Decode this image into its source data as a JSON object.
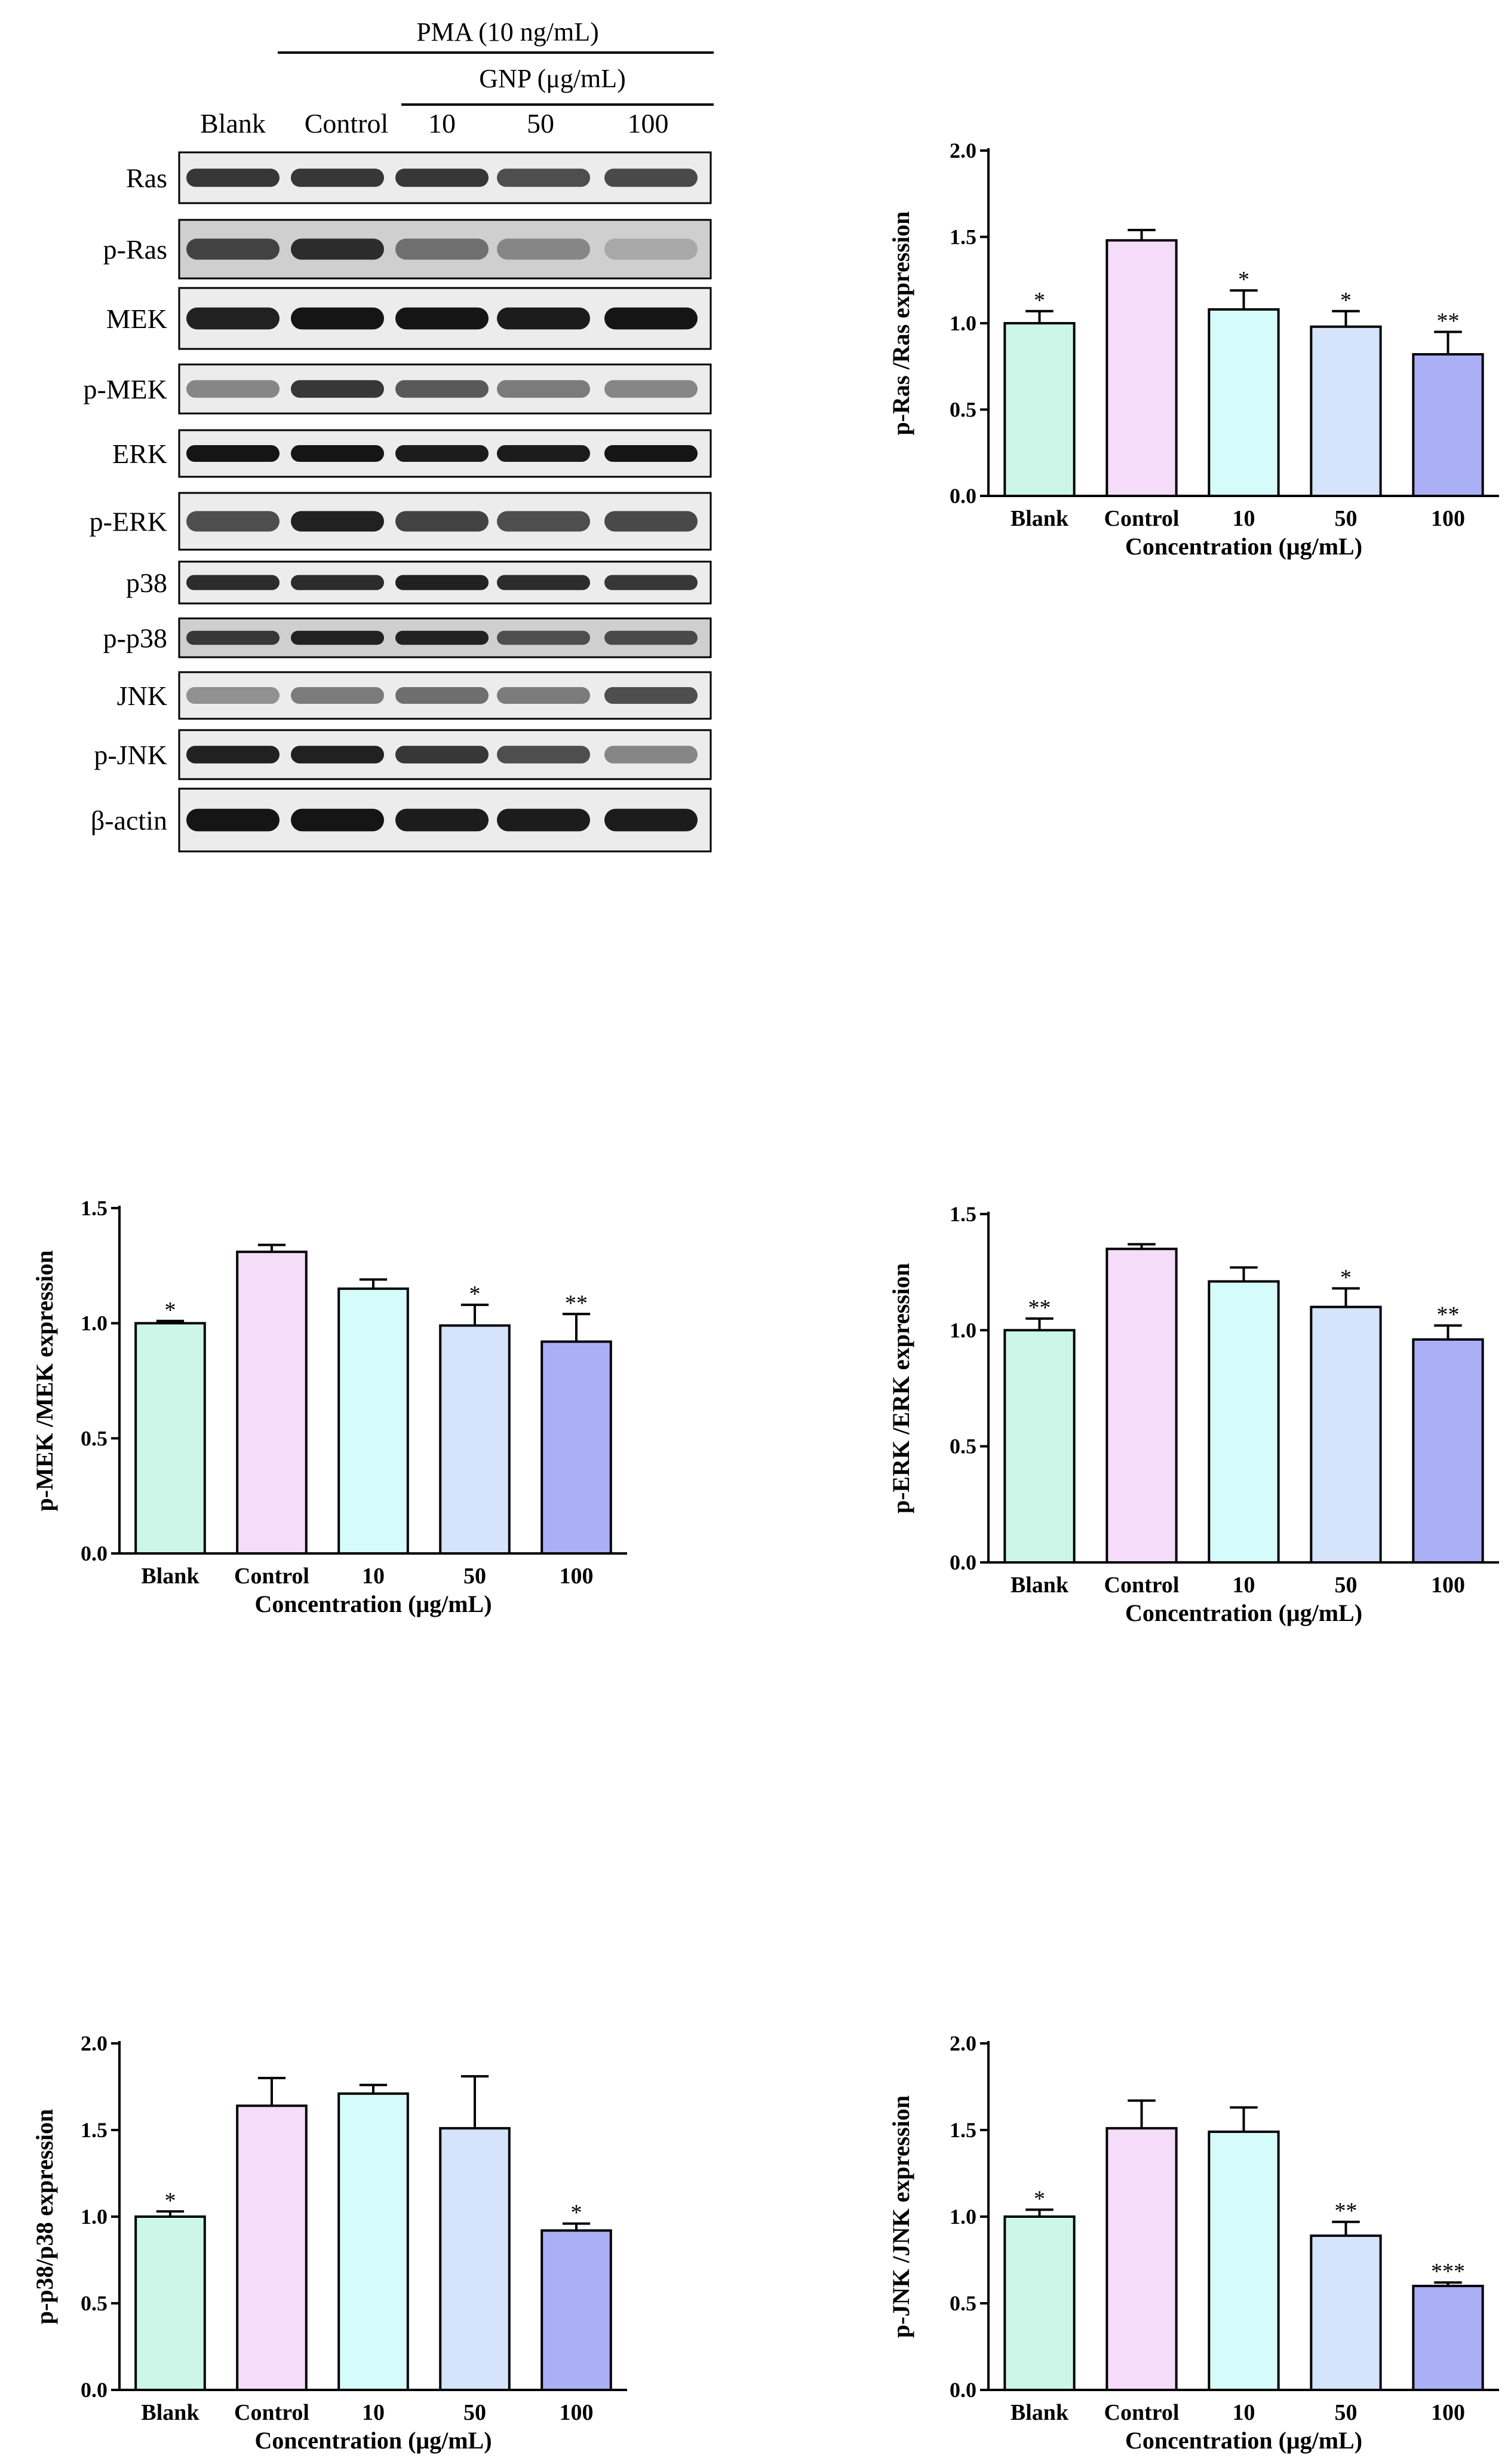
{
  "blot": {
    "treatment_label": "PMA (10 ng/mL)",
    "gnp_label": "GNP (μg/mL)",
    "lanes": [
      "Blank",
      "Control",
      "10",
      "50",
      "100"
    ],
    "proteins": [
      "Ras",
      "p-Ras",
      "MEK",
      "p-MEK",
      "ERK",
      "p-ERK",
      "p38",
      "p-p38",
      "JNK",
      "p-JNK",
      "β-actin"
    ],
    "band_intensity": [
      [
        0.8,
        0.8,
        0.8,
        0.7,
        0.72
      ],
      [
        0.75,
        0.85,
        0.55,
        0.45,
        0.3
      ],
      [
        0.9,
        0.95,
        0.95,
        0.92,
        0.95
      ],
      [
        0.45,
        0.8,
        0.65,
        0.5,
        0.45
      ],
      [
        0.95,
        0.95,
        0.92,
        0.92,
        0.95
      ],
      [
        0.7,
        0.9,
        0.75,
        0.7,
        0.72
      ],
      [
        0.85,
        0.85,
        0.9,
        0.85,
        0.8
      ],
      [
        0.8,
        0.9,
        0.9,
        0.7,
        0.72
      ],
      [
        0.4,
        0.5,
        0.55,
        0.5,
        0.7
      ],
      [
        0.9,
        0.9,
        0.8,
        0.7,
        0.45
      ],
      [
        0.95,
        0.95,
        0.92,
        0.92,
        0.92
      ]
    ]
  },
  "chart_data": [
    {
      "type": "bar",
      "categories": [
        "Blank",
        "Control",
        "10",
        "50",
        "100"
      ],
      "values": [
        1.0,
        1.48,
        1.08,
        0.98,
        0.82
      ],
      "errors": [
        0.07,
        0.06,
        0.11,
        0.09,
        0.13
      ],
      "significance": [
        "*",
        "",
        "*",
        "*",
        "**"
      ],
      "title": "",
      "xlabel": "Concentration (μg/mL)",
      "ylabel": "p-Ras /Ras expression",
      "ylim": [
        0,
        2.0
      ],
      "yticks": [
        "0.0",
        "0.5",
        "1.0",
        "1.5",
        "2.0"
      ],
      "colors": [
        "#ccf7e8",
        "#f5dcf8",
        "#d6fbfb",
        "#d6e4fb",
        "#aaaff6"
      ]
    },
    {
      "type": "bar",
      "categories": [
        "Blank",
        "Control",
        "10",
        "50",
        "100"
      ],
      "values": [
        1.0,
        1.31,
        1.15,
        0.99,
        0.92
      ],
      "errors": [
        0.01,
        0.03,
        0.04,
        0.09,
        0.12
      ],
      "significance": [
        "*",
        "",
        "",
        "*",
        "**"
      ],
      "title": "",
      "xlabel": "Concentration (μg/mL)",
      "ylabel": "p-MEK /MEK expression",
      "ylim": [
        0,
        1.5
      ],
      "yticks": [
        "0.0",
        "0.5",
        "1.0",
        "1.5"
      ],
      "colors": [
        "#ccf7e8",
        "#f5dcf8",
        "#d6fbfb",
        "#d6e4fb",
        "#aaaff6"
      ]
    },
    {
      "type": "bar",
      "categories": [
        "Blank",
        "Control",
        "10",
        "50",
        "100"
      ],
      "values": [
        1.0,
        1.35,
        1.21,
        1.1,
        0.96
      ],
      "errors": [
        0.05,
        0.02,
        0.06,
        0.08,
        0.06
      ],
      "significance": [
        "**",
        "",
        "",
        "*",
        "**"
      ],
      "title": "",
      "xlabel": "Concentration (μg/mL)",
      "ylabel": "p-ERK /ERK expression",
      "ylim": [
        0,
        1.5
      ],
      "yticks": [
        "0.0",
        "0.5",
        "1.0",
        "1.5"
      ],
      "colors": [
        "#ccf7e8",
        "#f5dcf8",
        "#d6fbfb",
        "#d6e4fb",
        "#aaaff6"
      ]
    },
    {
      "type": "bar",
      "categories": [
        "Blank",
        "Control",
        "10",
        "50",
        "100"
      ],
      "values": [
        1.0,
        1.64,
        1.71,
        1.51,
        0.92
      ],
      "errors": [
        0.03,
        0.16,
        0.05,
        0.3,
        0.04
      ],
      "significance": [
        "*",
        "",
        "",
        "",
        "*"
      ],
      "title": "",
      "xlabel": "Concentration (μg/mL)",
      "ylabel": "p-p38/p38 expression",
      "ylim": [
        0,
        2.0
      ],
      "yticks": [
        "0.0",
        "0.5",
        "1.0",
        "1.5",
        "2.0"
      ],
      "colors": [
        "#ccf7e8",
        "#f5dcf8",
        "#d6fbfb",
        "#d6e4fb",
        "#aaaff6"
      ]
    },
    {
      "type": "bar",
      "categories": [
        "Blank",
        "Control",
        "10",
        "50",
        "100"
      ],
      "values": [
        1.0,
        1.51,
        1.49,
        0.89,
        0.6
      ],
      "errors": [
        0.04,
        0.16,
        0.14,
        0.08,
        0.02
      ],
      "significance": [
        "*",
        "",
        "",
        "**",
        "***"
      ],
      "title": "",
      "xlabel": "Concentration (μg/mL)",
      "ylabel": "p-JNK /JNK expression",
      "ylim": [
        0,
        2.0
      ],
      "yticks": [
        "0.0",
        "0.5",
        "1.0",
        "1.5",
        "2.0"
      ],
      "colors": [
        "#ccf7e8",
        "#f5dcf8",
        "#d6fbfb",
        "#d6e4fb",
        "#aaaff6"
      ]
    }
  ]
}
